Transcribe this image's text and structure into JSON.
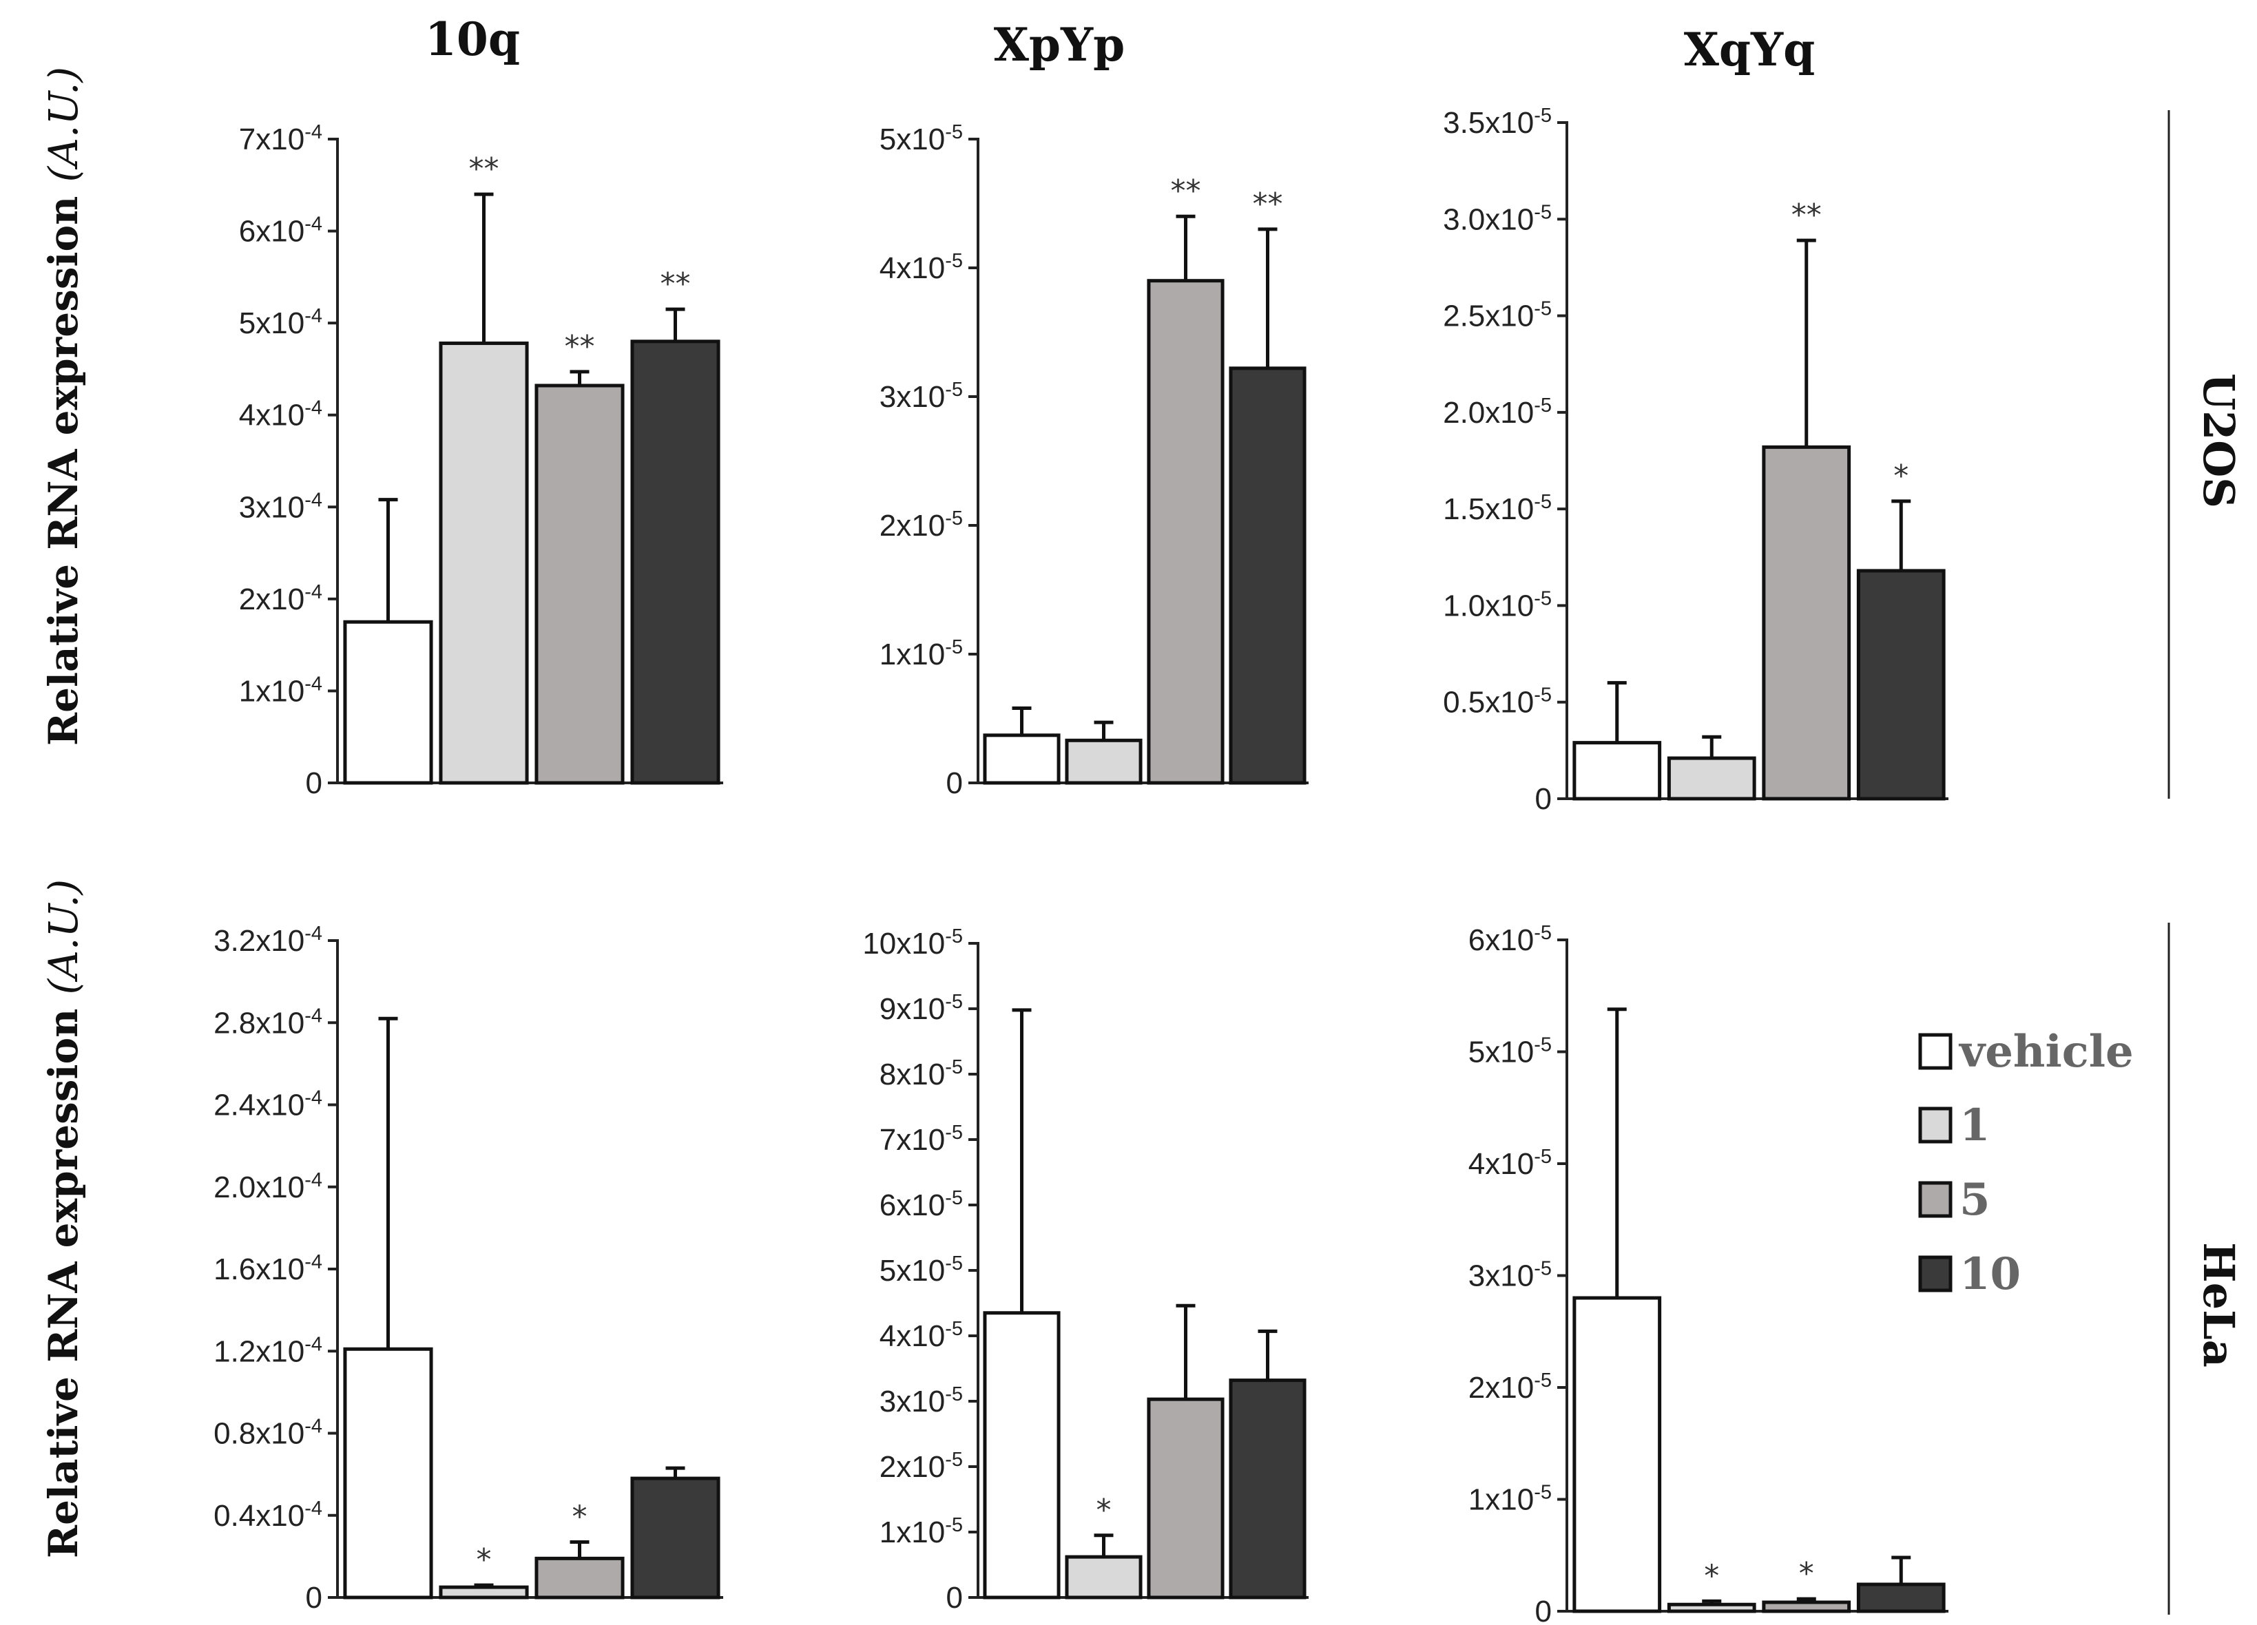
{
  "figure": {
    "y_axis_label": "Relative RNA expression",
    "y_axis_unit": "(A.U.)",
    "columns": [
      "10q",
      "XpYp",
      "XqYq"
    ],
    "rows": [
      "U2OS",
      "HeLa"
    ]
  },
  "legend": {
    "items": [
      {
        "label": "vehicle",
        "color": "#ffffff"
      },
      {
        "label": "1",
        "color": "#d9d9d9"
      },
      {
        "label": "5",
        "color": "#aeaaaa"
      },
      {
        "label": "10",
        "color": "#3a3a3a"
      }
    ]
  },
  "chart_data": [
    {
      "type": "bar",
      "title": "10q",
      "row": "U2OS",
      "categories": [
        "vehicle",
        "1",
        "5",
        "10"
      ],
      "values": [
        0.000175,
        0.000478,
        0.000432,
        0.00048
      ],
      "errors": [
        0.000133,
        0.000162,
        1.5e-05,
        3.5e-05
      ],
      "significance": [
        "",
        "**",
        "**",
        "**"
      ],
      "ylim": [
        0,
        0.0007
      ],
      "ticks": [
        {
          "value": 0,
          "mantissa": "0",
          "exponent": ""
        },
        {
          "value": 0.0001,
          "mantissa": "1x10",
          "exponent": "-4"
        },
        {
          "value": 0.0002,
          "mantissa": "2x10",
          "exponent": "-4"
        },
        {
          "value": 0.0003,
          "mantissa": "3x10",
          "exponent": "-4"
        },
        {
          "value": 0.0004,
          "mantissa": "4x10",
          "exponent": "-4"
        },
        {
          "value": 0.0005,
          "mantissa": "5x10",
          "exponent": "-4"
        },
        {
          "value": 0.0006,
          "mantissa": "6x10",
          "exponent": "-4"
        },
        {
          "value": 0.0007,
          "mantissa": "7x10",
          "exponent": "-4"
        }
      ]
    },
    {
      "type": "bar",
      "title": "XpYp",
      "row": "U2OS",
      "categories": [
        "vehicle",
        "1",
        "5",
        "10"
      ],
      "values": [
        3.7e-06,
        3.3e-06,
        3.9e-05,
        3.22e-05
      ],
      "errors": [
        2.1e-06,
        1.4e-06,
        5e-06,
        1.08e-05
      ],
      "significance": [
        "",
        "",
        "**",
        "**"
      ],
      "ylim": [
        0,
        5e-05
      ],
      "ticks": [
        {
          "value": 0,
          "mantissa": "0",
          "exponent": ""
        },
        {
          "value": 1e-05,
          "mantissa": "1x10",
          "exponent": "-5"
        },
        {
          "value": 2e-05,
          "mantissa": "2x10",
          "exponent": "-5"
        },
        {
          "value": 3e-05,
          "mantissa": "3x10",
          "exponent": "-5"
        },
        {
          "value": 4e-05,
          "mantissa": "4x10",
          "exponent": "-5"
        },
        {
          "value": 5e-05,
          "mantissa": "5x10",
          "exponent": "-5"
        }
      ]
    },
    {
      "type": "bar",
      "title": "XqYq",
      "row": "U2OS",
      "categories": [
        "vehicle",
        "1",
        "5",
        "10"
      ],
      "values": [
        2.9e-06,
        2.1e-06,
        1.82e-05,
        1.18e-05
      ],
      "errors": [
        3.1e-06,
        1.1e-06,
        1.07e-05,
        3.6e-06
      ],
      "significance": [
        "",
        "",
        "**",
        "*"
      ],
      "ylim": [
        0,
        3.5e-05
      ],
      "ticks": [
        {
          "value": 0,
          "mantissa": "0",
          "exponent": ""
        },
        {
          "value": 5e-06,
          "mantissa": "0.5x10",
          "exponent": "-5"
        },
        {
          "value": 1e-05,
          "mantissa": "1.0x10",
          "exponent": "-5"
        },
        {
          "value": 1.5e-05,
          "mantissa": "1.5x10",
          "exponent": "-5"
        },
        {
          "value": 2e-05,
          "mantissa": "2.0x10",
          "exponent": "-5"
        },
        {
          "value": 2.5e-05,
          "mantissa": "2.5x10",
          "exponent": "-5"
        },
        {
          "value": 3e-05,
          "mantissa": "3.0x10",
          "exponent": "-5"
        },
        {
          "value": 3.5e-05,
          "mantissa": "3.5x10",
          "exponent": "-5"
        }
      ]
    },
    {
      "type": "bar",
      "title": "10q",
      "row": "HeLa",
      "categories": [
        "vehicle",
        "1",
        "5",
        "10"
      ],
      "values": [
        0.000121,
        5e-06,
        1.9e-05,
        5.8e-05
      ],
      "errors": [
        0.000161,
        1e-06,
        8e-06,
        5e-06
      ],
      "significance": [
        "",
        "*",
        "*",
        ""
      ],
      "ylim": [
        0,
        0.00032
      ],
      "ticks": [
        {
          "value": 0,
          "mantissa": "0",
          "exponent": ""
        },
        {
          "value": 4e-05,
          "mantissa": "0.4x10",
          "exponent": "-4"
        },
        {
          "value": 8e-05,
          "mantissa": "0.8x10",
          "exponent": "-4"
        },
        {
          "value": 0.00012,
          "mantissa": "1.2x10",
          "exponent": "-4"
        },
        {
          "value": 0.00016,
          "mantissa": "1.6x10",
          "exponent": "-4"
        },
        {
          "value": 0.0002,
          "mantissa": "2.0x10",
          "exponent": "-4"
        },
        {
          "value": 0.00024,
          "mantissa": "2.4x10",
          "exponent": "-4"
        },
        {
          "value": 0.00028,
          "mantissa": "2.8x10",
          "exponent": "-4"
        },
        {
          "value": 0.00032,
          "mantissa": "3.2x10",
          "exponent": "-4"
        }
      ]
    },
    {
      "type": "bar",
      "title": "XpYp",
      "row": "HeLa",
      "categories": [
        "vehicle",
        "1",
        "5",
        "10"
      ],
      "values": [
        4.35e-05,
        6.2e-06,
        3.03e-05,
        3.32e-05
      ],
      "errors": [
        4.63e-05,
        3.3e-06,
        1.43e-05,
        7.5e-06
      ],
      "significance": [
        "",
        "*",
        "",
        ""
      ],
      "ylim": [
        0,
        0.0001
      ],
      "ticks": [
        {
          "value": 0,
          "mantissa": "0",
          "exponent": ""
        },
        {
          "value": 1e-05,
          "mantissa": "1x10",
          "exponent": "-5"
        },
        {
          "value": 2e-05,
          "mantissa": "2x10",
          "exponent": "-5"
        },
        {
          "value": 3e-05,
          "mantissa": "3x10",
          "exponent": "-5"
        },
        {
          "value": 4e-05,
          "mantissa": "4x10",
          "exponent": "-5"
        },
        {
          "value": 5e-05,
          "mantissa": "5x10",
          "exponent": "-5"
        },
        {
          "value": 6e-05,
          "mantissa": "6x10",
          "exponent": "-5"
        },
        {
          "value": 7e-05,
          "mantissa": "7x10",
          "exponent": "-5"
        },
        {
          "value": 8e-05,
          "mantissa": "8x10",
          "exponent": "-5"
        },
        {
          "value": 9e-05,
          "mantissa": "9x10",
          "exponent": "-5"
        },
        {
          "value": 0.0001,
          "mantissa": "10x10",
          "exponent": "-5"
        }
      ]
    },
    {
      "type": "bar",
      "title": "XqYq",
      "row": "HeLa",
      "categories": [
        "vehicle",
        "1",
        "5",
        "10"
      ],
      "values": [
        2.8e-05,
        6e-07,
        8e-07,
        2.4e-06
      ],
      "errors": [
        2.58e-05,
        3e-07,
        3e-07,
        2.4e-06
      ],
      "significance": [
        "",
        "*",
        "*",
        ""
      ],
      "ylim": [
        0,
        6e-05
      ],
      "ticks": [
        {
          "value": 0,
          "mantissa": "0",
          "exponent": ""
        },
        {
          "value": 1e-05,
          "mantissa": "1x10",
          "exponent": "-5"
        },
        {
          "value": 2e-05,
          "mantissa": "2x10",
          "exponent": "-5"
        },
        {
          "value": 3e-05,
          "mantissa": "3x10",
          "exponent": "-5"
        },
        {
          "value": 4e-05,
          "mantissa": "4x10",
          "exponent": "-5"
        },
        {
          "value": 5e-05,
          "mantissa": "5x10",
          "exponent": "-5"
        },
        {
          "value": 6e-05,
          "mantissa": "6x10",
          "exponent": "-5"
        }
      ]
    }
  ]
}
